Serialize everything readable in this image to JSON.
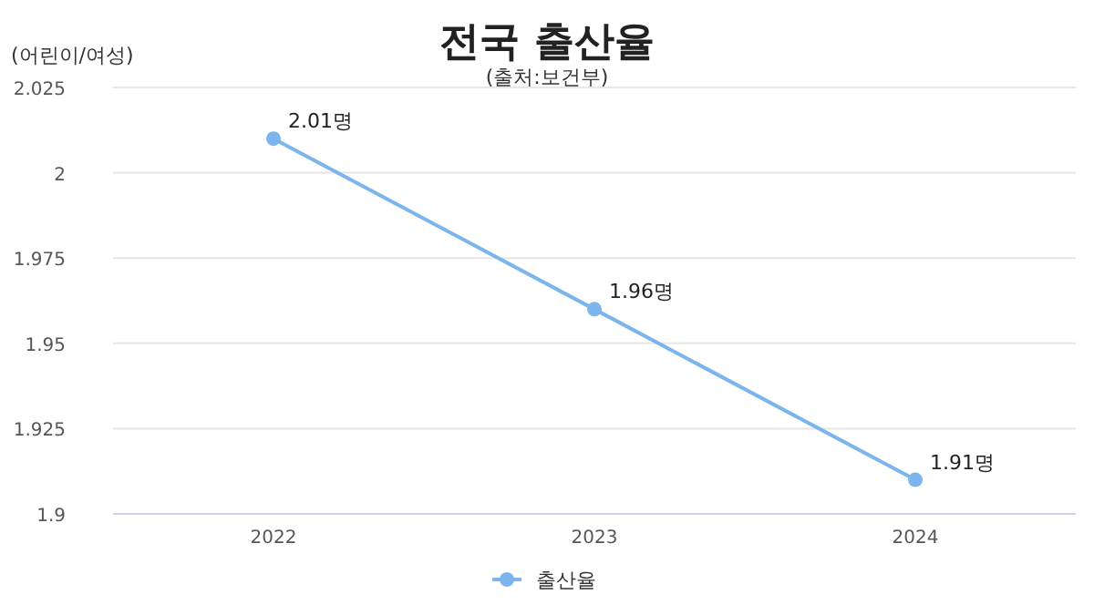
{
  "chart_data": {
    "type": "line",
    "title": "전국 출산율",
    "subtitle": "(출처:보건부)",
    "ylabel": "(어린이/여성)",
    "categories": [
      "2022",
      "2023",
      "2024"
    ],
    "series": [
      {
        "name": "출산율",
        "color": "#7cb5ec",
        "values": [
          2.01,
          1.96,
          1.91
        ],
        "value_labels": [
          "2.01명",
          "1.96명",
          "1.91명"
        ]
      }
    ],
    "ylim": [
      1.9,
      2.025
    ],
    "yticks": [
      1.9,
      1.925,
      1.95,
      1.975,
      2,
      2.025
    ],
    "grid": "y",
    "legend": "bottom",
    "marker": "circle",
    "line_style": "solid"
  }
}
